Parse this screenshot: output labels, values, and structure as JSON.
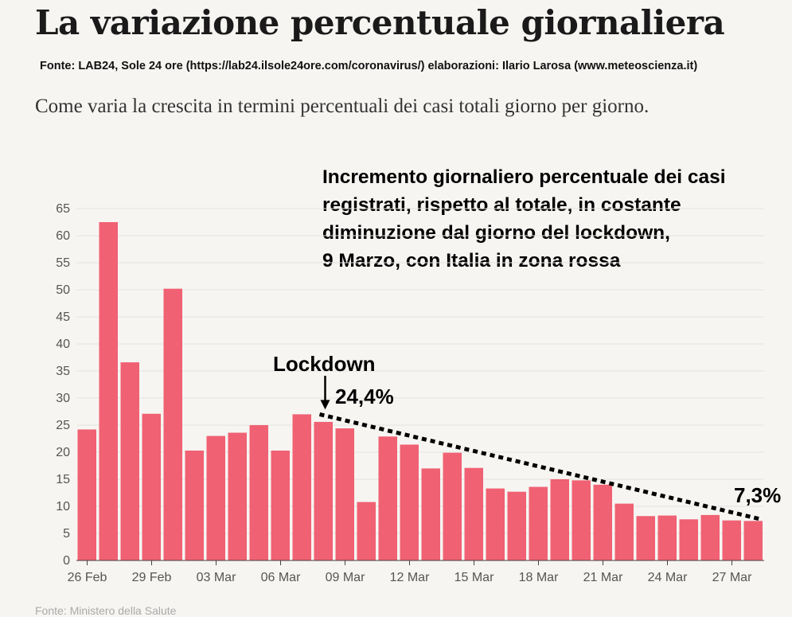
{
  "header": {
    "title": "La variazione percentuale giornaliera",
    "source": "Fonte: LAB24, Sole 24 ore (https://lab24.ilsole24ore.com/coronavirus/) elaborazioni: Ilario Larosa (www.meteoscienza.it)",
    "subtitle": "Come varia la crescita in termini percentuali dei casi totali giorno per giorno."
  },
  "annotation": {
    "lines": [
      "Incremento giornaliero percentuale dei casi",
      "registrati, rispetto al totale, in costante",
      "diminuzione dal giorno del lockdown,",
      "9 Marzo, con Italia in zona rossa"
    ],
    "lockdown_label": "Lockdown",
    "start_value_label": "24,4%",
    "end_value_label": "7,3%"
  },
  "footer": {
    "source": "Fonte: Ministero della Salute"
  },
  "colors": {
    "bar": "#f06173",
    "grid": "#e5e2de",
    "axis": "#555555",
    "trend": "#000000"
  },
  "chart_data": {
    "type": "bar",
    "categories": [
      "26 Feb",
      "27 Feb",
      "28 Feb",
      "29 Feb",
      "01 Mar",
      "02 Mar",
      "03 Mar",
      "04 Mar",
      "05 Mar",
      "06 Mar",
      "07 Mar",
      "08 Mar",
      "09 Mar",
      "10 Mar",
      "11 Mar",
      "12 Mar",
      "13 Mar",
      "14 Mar",
      "15 Mar",
      "16 Mar",
      "17 Mar",
      "18 Mar",
      "19 Mar",
      "20 Mar",
      "21 Mar",
      "22 Mar",
      "23 Mar",
      "24 Mar",
      "25 Mar",
      "26 Mar",
      "27 Mar",
      "28 Mar"
    ],
    "values": [
      24.2,
      62.5,
      36.6,
      27.1,
      50.2,
      20.3,
      23.0,
      23.6,
      25.0,
      20.3,
      27.0,
      25.6,
      24.4,
      10.8,
      22.9,
      21.4,
      17.0,
      19.9,
      17.1,
      13.3,
      12.7,
      13.6,
      15.0,
      14.8,
      14.0,
      10.5,
      8.2,
      8.3,
      7.6,
      8.4,
      7.4,
      7.3
    ],
    "tick_labels": [
      "26 Feb",
      "29 Feb",
      "03 Mar",
      "06 Mar",
      "09 Mar",
      "12 Mar",
      "15 Mar",
      "18 Mar",
      "21 Mar",
      "24 Mar",
      "27 Mar"
    ],
    "y_ticks": [
      0,
      5,
      10,
      15,
      20,
      25,
      30,
      35,
      40,
      45,
      50,
      55,
      60,
      65
    ],
    "ylim": [
      0,
      65
    ],
    "grid": true,
    "trendline": {
      "from_category": "08 Mar",
      "from_value": 27.0,
      "to_category": "28 Mar",
      "to_value": 7.3,
      "style": "dotted"
    },
    "lockdown_marker": {
      "category": "08 Mar",
      "value": 27.0
    }
  }
}
